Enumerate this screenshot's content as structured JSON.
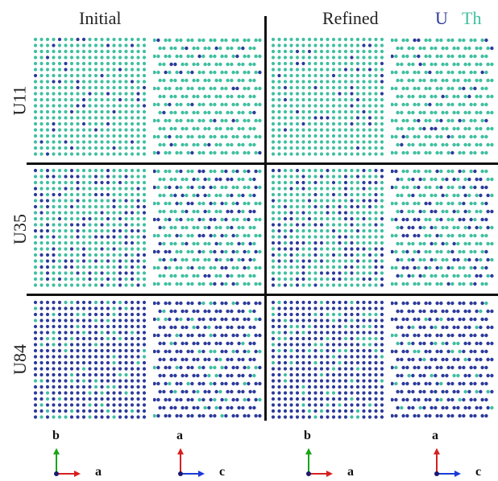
{
  "titles": {
    "initial": "Initial",
    "refined": "Refined"
  },
  "legend": {
    "u": {
      "label": "U",
      "color": "#2b3a9b"
    },
    "th": {
      "label": "Th",
      "color": "#3fbfa0"
    }
  },
  "rows": [
    {
      "label": "U11",
      "u_fraction": 0.11
    },
    {
      "label": "U35",
      "u_fraction": 0.35
    },
    {
      "label": "U84",
      "u_fraction": 0.84
    }
  ],
  "panel_views": [
    {
      "group": "initial",
      "view": "b-a",
      "lattice": "square"
    },
    {
      "group": "initial",
      "view": "a-c",
      "lattice": "paired"
    },
    {
      "group": "refined",
      "view": "b-a",
      "lattice": "square"
    },
    {
      "group": "refined",
      "view": "a-c",
      "lattice": "paired"
    }
  ],
  "view_labels": [
    {
      "top": "b",
      "right": "a",
      "vertical_color": "#1aa51a",
      "horizontal_color": "#d62020"
    },
    {
      "top": "a",
      "right": "c",
      "vertical_color": "#d62020",
      "horizontal_color": "#1c3bd6"
    },
    {
      "top": "b",
      "right": "a",
      "vertical_color": "#1aa51a",
      "horizontal_color": "#d62020"
    },
    {
      "top": "a",
      "right": "c",
      "vertical_color": "#d62020",
      "horizontal_color": "#1c3bd6"
    }
  ],
  "axis_origin_color": "#1a1a6e"
}
